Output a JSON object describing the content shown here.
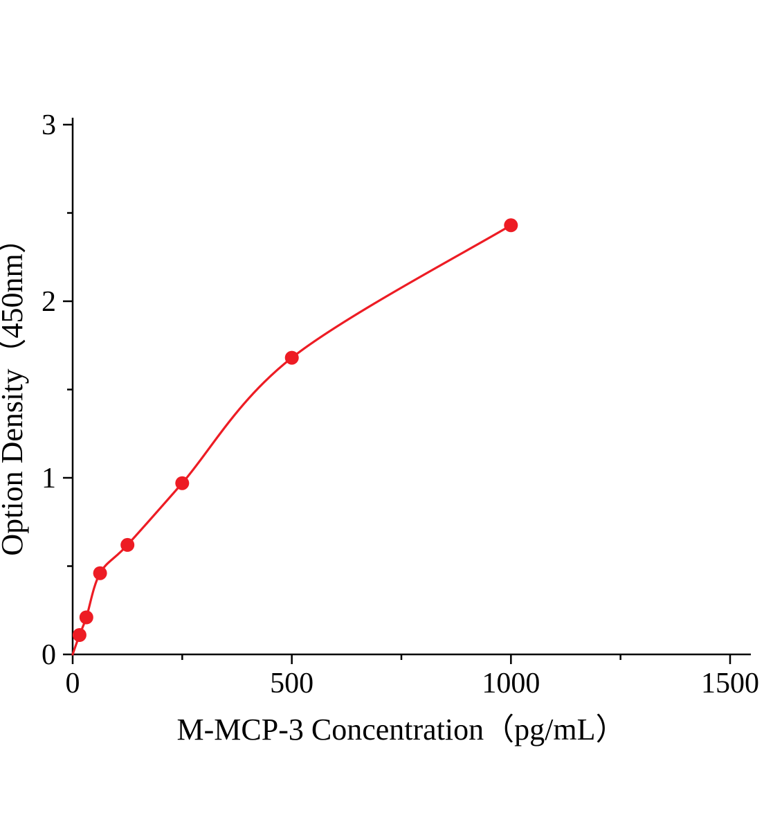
{
  "chart_data": {
    "type": "scatter",
    "title": "",
    "xlabel": "M-MCP-3 Concentration（pg/mL）",
    "ylabel": "Option Density（450nm）",
    "x": [
      15.6,
      31.2,
      62.5,
      125,
      250,
      500,
      1000
    ],
    "y": [
      0.11,
      0.21,
      0.46,
      0.62,
      0.97,
      1.68,
      2.43
    ],
    "curve_start": [
      0,
      0
    ],
    "xlim": [
      0,
      1500
    ],
    "ylim": [
      0,
      3
    ],
    "x_major_ticks": [
      0,
      500,
      1000,
      1500
    ],
    "x_minor_ticks": [
      250,
      750,
      1250
    ],
    "y_major_ticks": [
      0,
      1,
      2,
      3
    ],
    "y_minor_ticks": [
      0.5,
      1.5,
      2.5
    ],
    "grid": false,
    "legend": null,
    "line_color": "#ed1c24",
    "point_color": "#ed1c24",
    "axis_color": "#000000"
  }
}
